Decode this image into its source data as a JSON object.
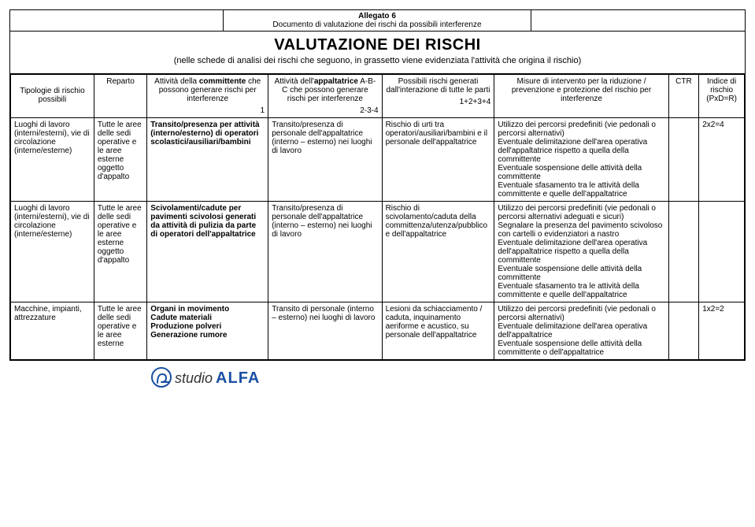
{
  "header": {
    "mid_line1": "Allegato 6",
    "mid_line2": "Documento di valutazione dei rischi da possibili interferenze"
  },
  "title": {
    "big": "VALUTAZIONE DEI RISCHI",
    "sub": "(nelle schede di analisi dei rischi che seguono, in grassetto viene evidenziata l'attività che origina il rischio)"
  },
  "columns": {
    "c1": "Tipologie di rischio possibili",
    "c2": "Reparto",
    "c3_top": "Attività della ",
    "c3_b": "committente",
    "c3_rest": " che possono generare rischi per interferenze",
    "c3_num": "1",
    "c4_top": "Attività dell'",
    "c4_b": "appaltatrice",
    "c4_rest": " A-B-C che possono generare rischi per interferenze",
    "c4_num": "2-3-4",
    "c5_top": "Possibili rischi generati dall'interazione di tutte le parti",
    "c5_num": "1+2+3+4",
    "c6": "Misure di intervento per la riduzione / prevenzione e protezione del rischio per interferenze",
    "c7": "CTR",
    "c8_l1": "Indice di",
    "c8_l2": "rischio",
    "c8_l3": "(PxD=R)"
  },
  "rows": [
    {
      "tip": "Luoghi di lavoro (interni/esterni), vie di circolazione (interne/esterne)",
      "rep": "Tutte le aree delle sedi operative e le aree esterne oggetto d'appalto",
      "att1_bold": "Transito/presenza per attività (interno/esterno) di operatori scolastici/ausiliari/bambini",
      "att2": "Transito/presenza di personale dell'appaltatrice (interno – esterno) nei luoghi di lavoro",
      "poss": "Rischio di urti tra operatori/ausiliari/bambini e il personale dell'appaltatrice",
      "mis": "Utilizzo dei percorsi predefiniti (vie pedonali o percorsi alternativi)\nEventuale delimitazione dell'area operativa dell'appaltatrice rispetto a quella della committente\nEventuale sospensione delle attività della committente\nEventuale sfasamento tra le attività della committente e quelle dell'appaltatrice",
      "ctr": "",
      "idx": "2x2=4"
    },
    {
      "tip": "Luoghi di lavoro (interni/esterni), vie di circolazione (interne/esterne)",
      "rep": "Tutte le aree delle sedi operative e le aree esterne oggetto d'appalto",
      "att1_bold": "Scivolamenti/cadute per pavimenti scivolosi generati da attività di pulizia da parte di operatori dell'appaltatrice",
      "att2": "Transito/presenza di personale dell'appaltatrice (interno – esterno) nei luoghi di lavoro",
      "poss": "Rischio di scivolamento/caduta della committenza/utenza/pubblico e dell'appaltatrice",
      "mis": "Utilizzo dei percorsi predefiniti (vie pedonali o percorsi alternativi adeguati e sicuri)\nSegnalare la presenza del pavimento scivoloso con cartelli o evidenziatori a nastro\nEventuale delimitazione dell'area operativa dell'appaltatrice rispetto a quella della committente\nEventuale sospensione delle attività della committente\nEventuale sfasamento tra le attività della committente e quelle dell'appaltatrice",
      "ctr": "",
      "idx": ""
    },
    {
      "tip": "Macchine, impianti, attrezzature",
      "rep": "Tutte le aree delle sedi operative e le aree esterne",
      "att1_bold": "Organi in movimento\nCadute materiali\nProduzione polveri\nGenerazione rumore",
      "att2": "Transito di personale (interno – esterno) nei luoghi di lavoro",
      "poss": "Lesioni da schiacciamento / caduta, inquinamento aeriforme e acustico, su personale dell'appaltatrice",
      "mis": "Utilizzo dei percorsi predefiniti (vie pedonali o percorsi alternativi)\nEventuale delimitazione dell'area operativa dell'appaltatrice\nEventuale sospensione delle attività della committente o dell'appaltatrice",
      "ctr": "",
      "idx": "1x2=2"
    }
  ],
  "footer": {
    "studio": "studio",
    "alfa": "ALFA",
    "mark_color": "#1a4fa3"
  }
}
